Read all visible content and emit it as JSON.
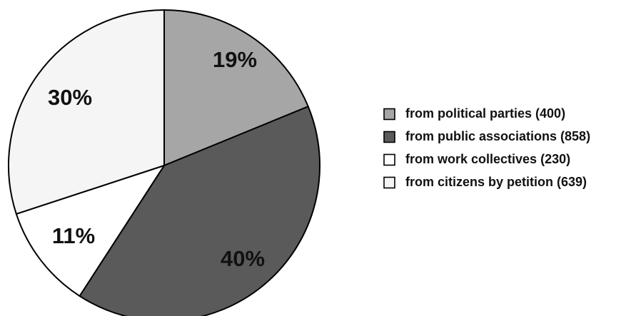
{
  "chart_data": {
    "type": "pie",
    "title": "",
    "slices": [
      {
        "label": "from political parties (400)",
        "value": 400,
        "percent_label": "19%",
        "color": "#a6a6a6"
      },
      {
        "label": "from public associations (858)",
        "value": 858,
        "percent_label": "40%",
        "color": "#5a5a5a"
      },
      {
        "label": "from work collectives (230)",
        "value": 230,
        "percent_label": "11%",
        "color": "#ffffff"
      },
      {
        "label": "from citizens by petition (639)",
        "value": 639,
        "percent_label": "30%",
        "color": "#f5f5f5"
      }
    ],
    "legend_position": "right",
    "start_angle": "12 o'clock",
    "direction": "clockwise"
  }
}
